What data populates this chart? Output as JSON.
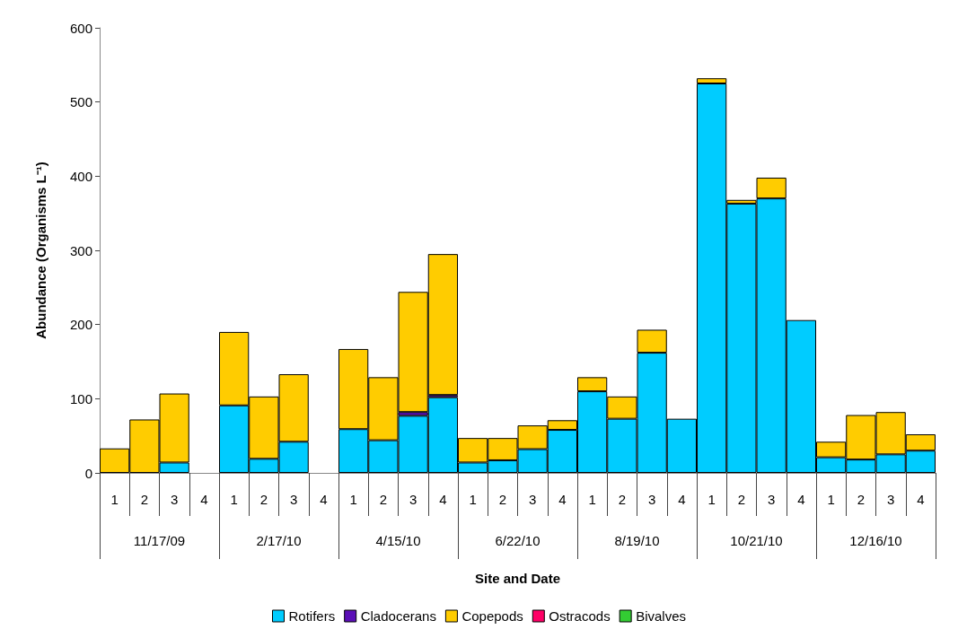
{
  "chart_data": {
    "type": "bar",
    "stacked": true,
    "ylabel": "Abundance (Organisms L⁻¹)",
    "xlabel": "Site and Date",
    "categories": [
      "1",
      "2",
      "3",
      "4",
      "1",
      "2",
      "3",
      "4",
      "1",
      "2",
      "3",
      "4",
      "1",
      "2",
      "3",
      "4",
      "1",
      "2",
      "3",
      "4",
      "1",
      "2",
      "3",
      "4",
      "1",
      "2",
      "3",
      "4"
    ],
    "annotations": [
      "11/17/09",
      "2/17/10",
      "4/15/10",
      "6/22/10",
      "8/19/10",
      "10/21/10",
      "12/16/10"
    ],
    "series": [
      {
        "name": "Rotifers",
        "color": "#00ccff",
        "values": [
          null,
          null,
          14,
          0,
          91,
          19,
          42,
          0,
          59,
          44,
          77,
          102,
          14,
          17,
          32,
          58,
          110,
          73,
          162,
          73,
          525,
          363,
          370,
          206,
          21,
          18,
          25,
          30
        ]
      },
      {
        "name": "Cladocerans",
        "color": "#5b0fb7",
        "values": [
          0,
          0,
          0,
          0,
          0,
          0,
          0,
          0,
          0,
          0,
          5,
          3,
          0,
          0,
          0,
          0,
          0,
          0,
          0,
          0,
          0,
          0,
          0,
          0,
          0,
          0,
          0,
          0
        ]
      },
      {
        "name": "Copepods",
        "color": "#ffcc00",
        "values": [
          33,
          72,
          93,
          0,
          99,
          84,
          91,
          0,
          108,
          85,
          162,
          190,
          33,
          30,
          32,
          13,
          19,
          30,
          31,
          null,
          7,
          5,
          28,
          0,
          21,
          60,
          57,
          22
        ]
      },
      {
        "name": "Ostracods",
        "color": "#ff0066",
        "values": [
          0,
          0,
          0,
          0,
          0,
          0,
          0,
          0,
          0,
          0,
          0,
          0,
          0,
          0,
          0,
          0,
          0,
          0,
          0,
          0,
          0,
          0,
          0,
          0,
          0,
          0,
          0,
          0
        ]
      },
      {
        "name": "Bivalves",
        "color": "#33cc33",
        "values": [
          0,
          0,
          0,
          0,
          0,
          0,
          0,
          0,
          0,
          0,
          0,
          0,
          0,
          0,
          0,
          0,
          0,
          0,
          0,
          0,
          0,
          0,
          0,
          0,
          0,
          0,
          0,
          0
        ]
      }
    ],
    "ylim": [
      0,
      600
    ],
    "yticks": [
      0,
      100,
      200,
      300,
      400,
      500,
      600
    ],
    "grid": false,
    "legend": "bottom"
  }
}
